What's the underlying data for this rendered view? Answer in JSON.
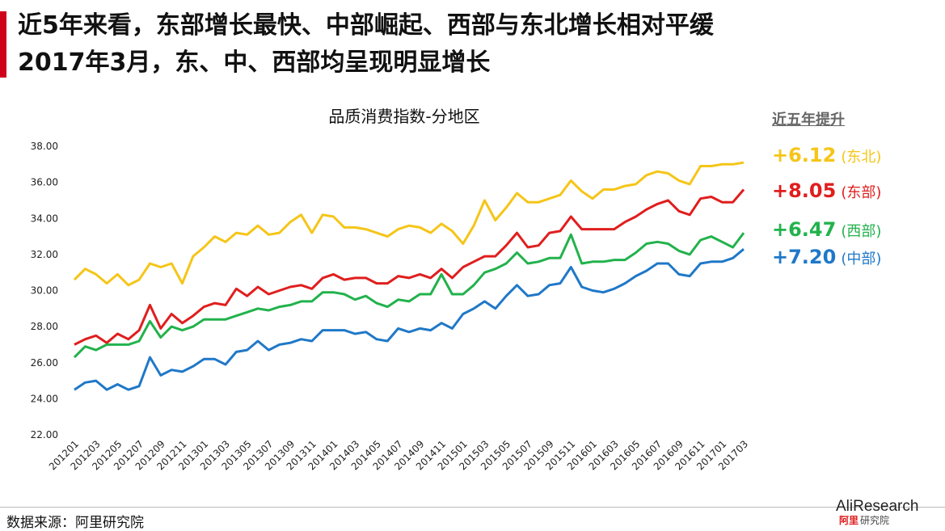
{
  "header": {
    "line1": "近5年来看，东部增长最快、中部崛起、西部与东北增长相对平缓",
    "line2": "2017年3月，东、中、西部均呈现明显增长"
  },
  "legend": {
    "heading": "近五年提升",
    "entries": [
      {
        "value": "+6.12",
        "region": "(东北)",
        "color": "#f5c518"
      },
      {
        "value": "+8.05",
        "region": "(东部)",
        "color": "#e01e1e"
      },
      {
        "value": "+6.47",
        "region": "(西部)",
        "color": "#22b24c"
      },
      {
        "value": "+7.20",
        "region": "(中部)",
        "color": "#1f78c8"
      }
    ]
  },
  "footer": {
    "source": "数据来源：阿里研究院",
    "logo_brand": "AliResearch",
    "logo_sub_red": "阿里",
    "logo_sub_gray": "研究院"
  },
  "chart_data": {
    "type": "line",
    "title": "品质消费指数-分地区",
    "ylim": [
      22,
      38
    ],
    "yticks": [
      "38.00",
      "36.00",
      "34.00",
      "32.00",
      "30.00",
      "28.00",
      "26.00",
      "24.00",
      "22.00"
    ],
    "grid": false,
    "x": [
      "201201",
      "201202",
      "201203",
      "201204",
      "201205",
      "201206",
      "201207",
      "201208",
      "201209",
      "201210",
      "201211",
      "201212",
      "201301",
      "201302",
      "201303",
      "201304",
      "201305",
      "201306",
      "201307",
      "201308",
      "201309",
      "201310",
      "201311",
      "201312",
      "201401",
      "201402",
      "201403",
      "201404",
      "201405",
      "201406",
      "201407",
      "201408",
      "201409",
      "201410",
      "201411",
      "201412",
      "201501",
      "201502",
      "201503",
      "201504",
      "201505",
      "201506",
      "201507",
      "201508",
      "201509",
      "201510",
      "201511",
      "201512",
      "201601",
      "201602",
      "201603",
      "201604",
      "201605",
      "201606",
      "201607",
      "201608",
      "201609",
      "201610",
      "201611",
      "201612",
      "201701",
      "201702",
      "201703"
    ],
    "xtick_labels": [
      "201201",
      "201203",
      "201205",
      "201207",
      "201209",
      "201211",
      "201301",
      "201303",
      "201305",
      "201307",
      "201309",
      "201311",
      "201401",
      "201403",
      "201405",
      "201407",
      "201409",
      "201411",
      "201501",
      "201503",
      "201505",
      "201507",
      "201509",
      "201511",
      "201601",
      "201603",
      "201605",
      "201607",
      "201609",
      "201611",
      "201701",
      "201703"
    ],
    "series": [
      {
        "name": "东北",
        "color": "#f5c518",
        "values": [
          30.6,
          31.2,
          30.9,
          30.4,
          30.9,
          30.3,
          30.6,
          31.5,
          31.3,
          31.5,
          30.4,
          31.9,
          32.4,
          33.0,
          32.7,
          33.2,
          33.1,
          33.6,
          33.1,
          33.2,
          33.8,
          34.2,
          33.2,
          34.2,
          34.1,
          33.5,
          33.5,
          33.4,
          33.2,
          33.0,
          33.4,
          33.6,
          33.5,
          33.2,
          33.7,
          33.3,
          32.6,
          33.6,
          35.0,
          33.9,
          34.6,
          35.4,
          34.9,
          34.9,
          35.1,
          35.3,
          36.1,
          35.5,
          35.1,
          35.6,
          35.6,
          35.8,
          35.9,
          36.4,
          36.6,
          36.5,
          36.1,
          35.9,
          36.9,
          36.9,
          37.0,
          37.0,
          37.1
        ]
      },
      {
        "name": "东部",
        "color": "#e01e1e",
        "values": [
          27.0,
          27.3,
          27.5,
          27.1,
          27.6,
          27.3,
          27.8,
          29.2,
          27.9,
          28.7,
          28.2,
          28.6,
          29.1,
          29.3,
          29.2,
          30.1,
          29.7,
          30.2,
          29.8,
          30.0,
          30.2,
          30.3,
          30.1,
          30.7,
          30.9,
          30.6,
          30.7,
          30.7,
          30.4,
          30.4,
          30.8,
          30.7,
          30.9,
          30.7,
          31.2,
          30.7,
          31.3,
          31.6,
          31.9,
          31.9,
          32.5,
          33.2,
          32.4,
          32.5,
          33.2,
          33.3,
          34.1,
          33.4,
          33.4,
          33.4,
          33.4,
          33.8,
          34.1,
          34.5,
          34.8,
          35.0,
          34.4,
          34.2,
          35.1,
          35.2,
          34.9,
          34.9,
          35.6
        ]
      },
      {
        "name": "西部",
        "color": "#22b24c",
        "values": [
          26.3,
          26.9,
          26.7,
          27.0,
          27.0,
          27.0,
          27.2,
          28.3,
          27.4,
          28.0,
          27.8,
          28.0,
          28.4,
          28.4,
          28.4,
          28.6,
          28.8,
          29.0,
          28.9,
          29.1,
          29.2,
          29.4,
          29.4,
          29.9,
          29.9,
          29.8,
          29.5,
          29.7,
          29.3,
          29.1,
          29.5,
          29.4,
          29.8,
          29.8,
          30.9,
          29.8,
          29.8,
          30.3,
          31.0,
          31.2,
          31.5,
          32.1,
          31.5,
          31.6,
          31.8,
          31.8,
          33.1,
          31.5,
          31.6,
          31.6,
          31.7,
          31.7,
          32.1,
          32.6,
          32.7,
          32.6,
          32.2,
          32.0,
          32.8,
          33.0,
          32.7,
          32.4,
          33.2
        ]
      },
      {
        "name": "中部",
        "color": "#1f78c8",
        "values": [
          24.5,
          24.9,
          25.0,
          24.5,
          24.8,
          24.5,
          24.7,
          26.3,
          25.3,
          25.6,
          25.5,
          25.8,
          26.2,
          26.2,
          25.9,
          26.6,
          26.7,
          27.2,
          26.7,
          27.0,
          27.1,
          27.3,
          27.2,
          27.8,
          27.8,
          27.8,
          27.6,
          27.7,
          27.3,
          27.2,
          27.9,
          27.7,
          27.9,
          27.8,
          28.2,
          27.9,
          28.7,
          29.0,
          29.4,
          29.0,
          29.7,
          30.3,
          29.7,
          29.8,
          30.3,
          30.4,
          31.3,
          30.2,
          30.0,
          29.9,
          30.1,
          30.4,
          30.8,
          31.1,
          31.5,
          31.5,
          30.9,
          30.8,
          31.5,
          31.6,
          31.6,
          31.8,
          32.3
        ]
      }
    ]
  }
}
